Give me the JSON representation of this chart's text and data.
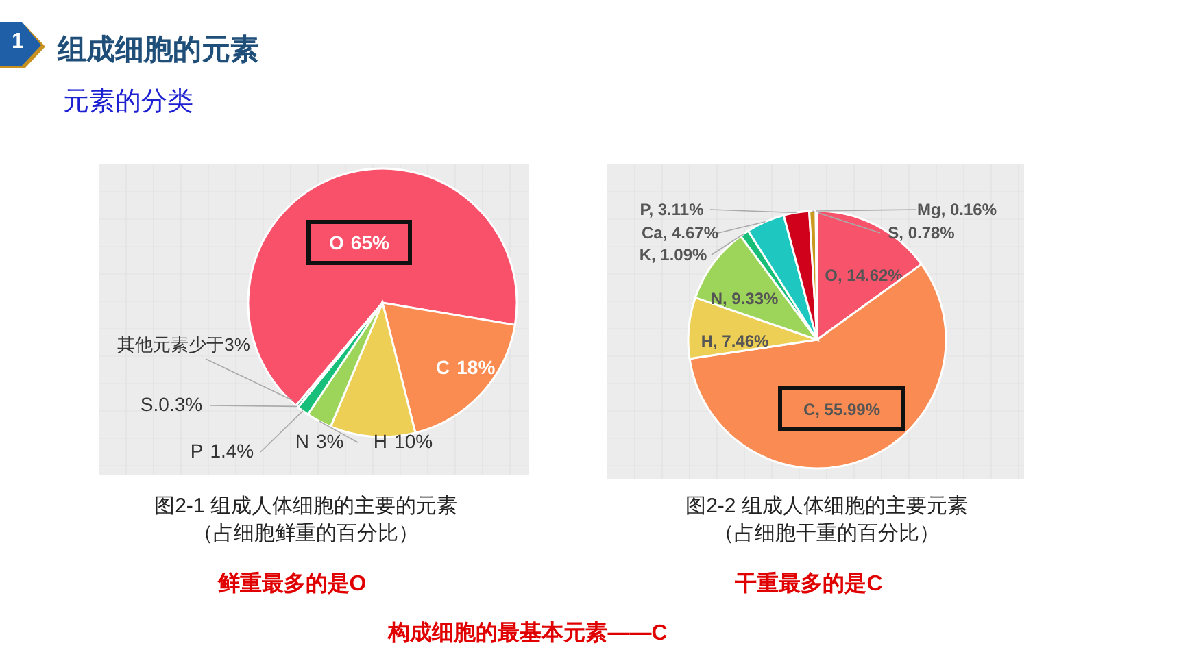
{
  "chart_data": [
    {
      "type": "pie",
      "title": "图2-1  组成人体细胞的主要的元素",
      "subtitle": "（占细胞鲜重的百分比）",
      "categories": [
        "O",
        "C",
        "H",
        "N",
        "P",
        "S"
      ],
      "values": [
        65,
        18,
        10,
        3,
        1.4,
        0.3
      ],
      "colors": [
        "#fa516a",
        "#fa8c52",
        "#edcf55",
        "#9dd55a",
        "#17bf7a",
        "#0f9a5f"
      ],
      "value_labels": [
        "65%",
        "18%",
        "10%",
        "3%",
        "1.4%",
        ".0.3%"
      ],
      "annotations": [
        "1",
        "组成细胞的元素",
        "元素的分类",
        "其他元素少于3%",
        "鲜重最多的是O",
        "构成细胞的最基本元素——C"
      ]
    },
    {
      "type": "pie",
      "title": "图2-2  组成人体细胞的主要元素",
      "subtitle": "（占细胞干重的百分比）",
      "categories": [
        "O",
        "C",
        "H",
        "N",
        "K",
        "Ca",
        "P",
        "S",
        "Mg"
      ],
      "values": [
        14.62,
        55.99,
        7.46,
        9.33,
        1.09,
        4.67,
        3.11,
        0.78,
        0.16
      ],
      "colors": [
        "#f7536b",
        "#fa8b52",
        "#eecf55",
        "#9dd45a",
        "#18bd78",
        "#1ec8c0",
        "#d0021b",
        "#c99a1e",
        "#8a6d10"
      ],
      "value_labels": [
        ", 14.62%",
        ", 55.99%",
        ", 7.46%",
        ", 9.33%",
        ", 1.09%",
        ", 4.67%",
        ", 3.11%",
        ", 0.78%",
        ", 0.16%"
      ],
      "annotations": [
        "干重最多的是C"
      ]
    }
  ]
}
